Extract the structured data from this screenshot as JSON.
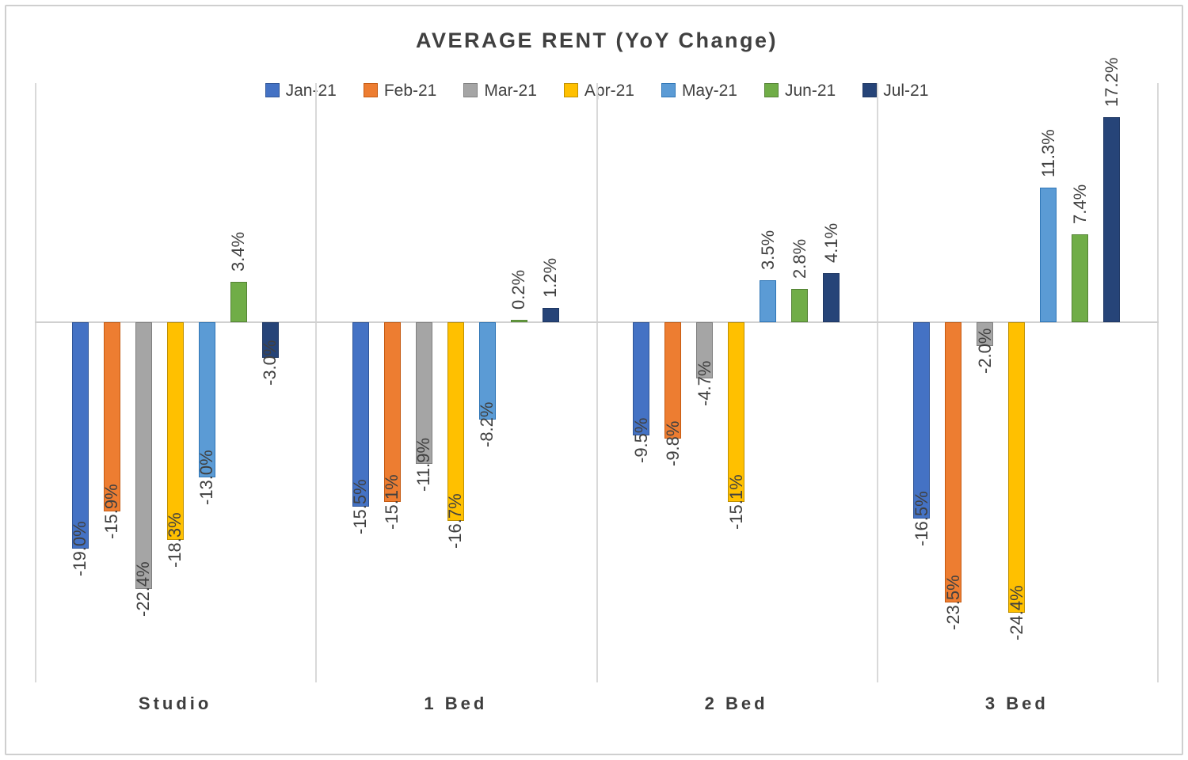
{
  "chart_data": {
    "type": "bar",
    "title": "AVERAGE RENT (YoY Change)",
    "categories": [
      "Studio",
      "1 Bed",
      "2 Bed",
      "3 Bed"
    ],
    "series": [
      {
        "name": "Jan-21",
        "color": "#4472C4",
        "border_color": "#2F5597",
        "values": [
          -19.0,
          -15.5,
          -9.5,
          -16.5
        ],
        "labels": [
          "-19.0%",
          "-15.5%",
          "-9.5%",
          "-16.5%"
        ]
      },
      {
        "name": "Feb-21",
        "color": "#ED7D31",
        "border_color": "#C55A11",
        "values": [
          -15.9,
          -15.1,
          -9.8,
          -23.5
        ],
        "labels": [
          "-15.9%",
          "-15.1%",
          "-9.8%",
          "-23.5%"
        ]
      },
      {
        "name": "Mar-21",
        "color": "#A5A5A5",
        "border_color": "#7F7F7F",
        "values": [
          -22.4,
          -11.9,
          -4.7,
          -2.0
        ],
        "labels": [
          "-22.4%",
          "-11.9%",
          "-4.7%",
          "-2.0%"
        ]
      },
      {
        "name": "Apr-21",
        "color": "#FFC000",
        "border_color": "#BF9000",
        "values": [
          -18.3,
          -16.7,
          -15.1,
          -24.4
        ],
        "labels": [
          "-18.3%",
          "-16.7%",
          "-15.1%",
          "-24.4%"
        ]
      },
      {
        "name": "May-21",
        "color": "#5B9BD5",
        "border_color": "#2E75B6",
        "values": [
          -13.0,
          -8.2,
          3.5,
          11.3
        ],
        "labels": [
          "-13.0%",
          "-8.2%",
          "3.5%",
          "11.3%"
        ]
      },
      {
        "name": "Jun-21",
        "color": "#70AD47",
        "border_color": "#548235",
        "values": [
          3.4,
          0.2,
          2.8,
          7.4
        ],
        "labels": [
          "3.4%",
          "0.2%",
          "2.8%",
          "7.4%"
        ]
      },
      {
        "name": "Jul-21",
        "color": "#264478",
        "border_color": "#1F3864",
        "values": [
          -3.0,
          1.2,
          4.1,
          17.2
        ],
        "labels": [
          "-3.0%",
          "1.2%",
          "4.1%",
          "17.2%"
        ]
      }
    ],
    "ylim": [
      -30,
      20
    ],
    "grid": false,
    "legend_position": "top",
    "data_label_format": "0.0%"
  }
}
